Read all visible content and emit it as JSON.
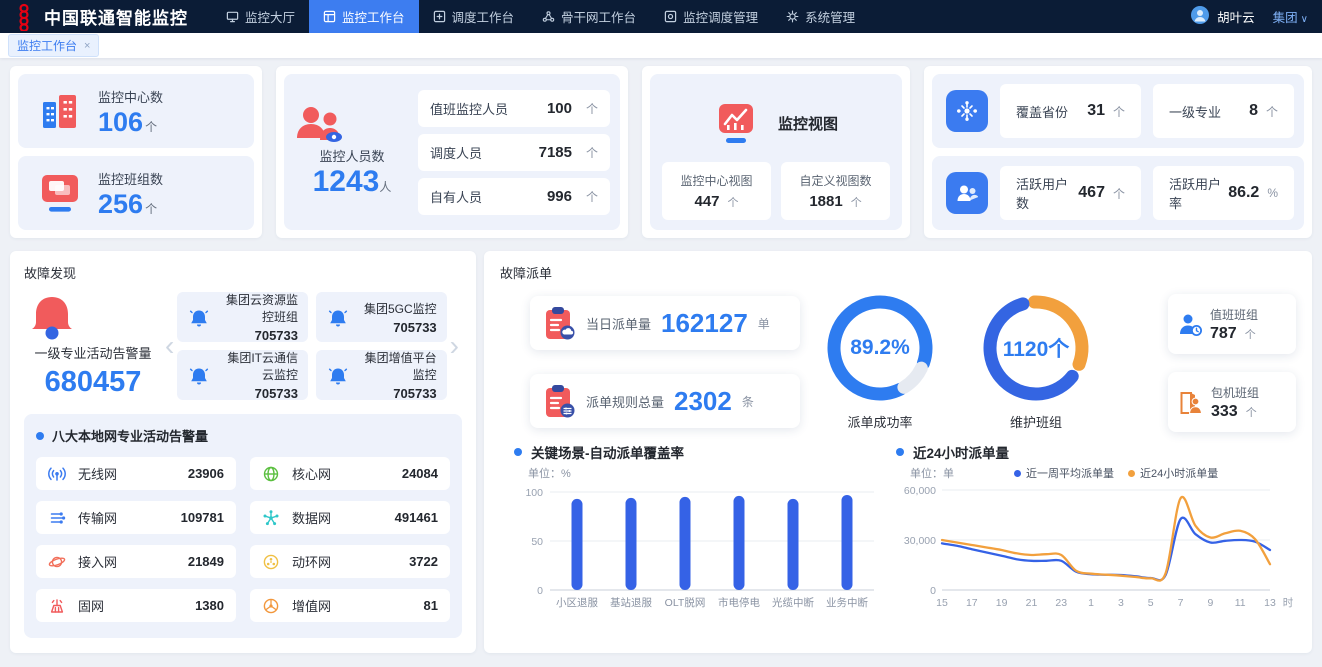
{
  "brand": {
    "title": "中国联通智能监控"
  },
  "navbar": {
    "items": [
      {
        "label": "监控大厅",
        "icon": "monitor-hall-icon",
        "active": false
      },
      {
        "label": "监控工作台",
        "icon": "monitor-workbench-icon",
        "active": true
      },
      {
        "label": "调度工作台",
        "icon": "dispatch-workbench-icon",
        "active": false
      },
      {
        "label": "骨干网工作台",
        "icon": "backbone-workbench-icon",
        "active": false
      },
      {
        "label": "监控调度管理",
        "icon": "schedule-mgmt-icon",
        "active": false
      },
      {
        "label": "系统管理",
        "icon": "gear-icon",
        "active": false
      }
    ],
    "user": {
      "name": "胡叶云"
    },
    "org": {
      "label": "集团",
      "caret": "∨"
    }
  },
  "tab_bar": {
    "tabs": [
      {
        "label": "监控工作台",
        "close": "×"
      }
    ]
  },
  "overview": {
    "centers": {
      "label": "监控中心数",
      "value": "106",
      "unit": "个"
    },
    "teams": {
      "label": "监控班组数",
      "value": "256",
      "unit": "个"
    },
    "staff": {
      "label": "监控人员数",
      "value": "1243",
      "unit": "人",
      "rows": [
        {
          "label": "值班监控人员",
          "value": "100",
          "unit": "个"
        },
        {
          "label": "调度人员",
          "value": "7185",
          "unit": "个"
        },
        {
          "label": "自有人员",
          "value": "996",
          "unit": "个"
        }
      ]
    },
    "views": {
      "title": "监控视图",
      "rows": [
        {
          "label": "监控中心视图",
          "value": "447",
          "unit": "个"
        },
        {
          "label": "自定义视图数",
          "value": "1881",
          "unit": "个"
        }
      ]
    },
    "coverage_rows": [
      {
        "icon": "folder-network-icon",
        "stats": [
          {
            "label": "覆盖省份",
            "value": "31",
            "unit": "个"
          },
          {
            "label": "一级专业",
            "value": "8",
            "unit": "个"
          }
        ]
      },
      {
        "icon": "folder-users-icon",
        "stats": [
          {
            "label": "活跃用户数",
            "value": "467",
            "unit": "个"
          },
          {
            "label": "活跃用户率",
            "value": "86.2",
            "unit": "%"
          }
        ]
      }
    ]
  },
  "fault_discovery": {
    "title": "故障发现",
    "summary": {
      "label": "一级专业活动告警量",
      "value": "680457"
    },
    "carousel": {
      "prev": "‹",
      "next": "›"
    },
    "group_cards": [
      {
        "name": "集团云资源监控班组",
        "value": "705733"
      },
      {
        "name": "集团5GC监控",
        "value": "705733"
      },
      {
        "name": "集团IT云通信云监控",
        "value": "705733"
      },
      {
        "name": "集团增值平台监控",
        "value": "705733"
      }
    ],
    "local_networks": {
      "title": "八大本地网专业活动告警量",
      "items": [
        {
          "name": "无线网",
          "value": "23906",
          "icon": "wireless-network-icon",
          "color": "#3b7bf0"
        },
        {
          "name": "核心网",
          "value": "24084",
          "icon": "core-network-icon",
          "color": "#5abf3f"
        },
        {
          "name": "传输网",
          "value": "109781",
          "icon": "transmission-network-icon",
          "color": "#3b7bf0"
        },
        {
          "name": "数据网",
          "value": "491461",
          "icon": "data-network-icon",
          "color": "#2ec7c9"
        },
        {
          "name": "接入网",
          "value": "21849",
          "icon": "access-network-icon",
          "color": "#f2705b"
        },
        {
          "name": "动环网",
          "value": "3722",
          "icon": "power-env-network-icon",
          "color": "#f0c043"
        },
        {
          "name": "固网",
          "value": "1380",
          "icon": "fixed-network-icon",
          "color": "#f15b5c"
        },
        {
          "name": "增值网",
          "value": "81",
          "icon": "value-added-network-icon",
          "color": "#f2973c"
        }
      ]
    }
  },
  "fault_dispatch": {
    "title": "故障派单",
    "stat_cards": [
      {
        "label": "当日派单量",
        "value": "162127",
        "unit": "单",
        "icon": "clipboard-cloud-icon"
      },
      {
        "label": "派单规则总量",
        "value": "2302",
        "unit": "条",
        "icon": "clipboard-rules-icon"
      }
    ],
    "gauges": [
      {
        "label": "派单成功率",
        "center_text": "89.2%",
        "segments": [
          {
            "color": "#2e7cf0",
            "fraction": 0.892,
            "start_deg": 154
          },
          {
            "color": "#e6eaf1",
            "fraction": 0.108,
            "start_deg": 116
          }
        ]
      },
      {
        "label": "维护班组",
        "center_text": "1120个",
        "segments": [
          {
            "color": "#f2a03d",
            "fraction": 0.33,
            "start_deg": -2
          },
          {
            "color": "#3465e2",
            "fraction": 0.615,
            "start_deg": 128
          }
        ]
      }
    ],
    "team_cards": [
      {
        "label": "值班班组",
        "value": "787",
        "unit": "个",
        "icon": "person-clock-icon"
      },
      {
        "label": "包机班组",
        "value": "333",
        "unit": "个",
        "icon": "person-door-icon"
      }
    ]
  },
  "chart_data": [
    {
      "type": "bar",
      "title": "关键场景-自动派单覆盖率",
      "unit_label": "单位：%",
      "categories": [
        "小区退服",
        "基站退服",
        "OLT脱网",
        "市电停电",
        "光缆中断",
        "业务中断"
      ],
      "values": [
        93,
        94,
        95,
        96,
        93,
        97
      ],
      "ylim": [
        0,
        100
      ],
      "yticks": [
        0,
        50,
        100
      ],
      "ytick_labels": [
        "0",
        "50",
        "100"
      ],
      "bar_color": "#3562e6",
      "grid": true,
      "legend": "none"
    },
    {
      "type": "line",
      "title": "近24小时派单量",
      "unit_label": "单位：单",
      "x_unit": "时",
      "x": [
        15,
        16,
        17,
        18,
        19,
        20,
        21,
        22,
        23,
        0,
        1,
        2,
        3,
        4,
        5,
        6,
        7,
        8,
        9,
        10,
        11,
        12,
        13
      ],
      "xtick_labels": [
        "15",
        "17",
        "19",
        "21",
        "23",
        "1",
        "3",
        "5",
        "7",
        "9",
        "11",
        "13"
      ],
      "series": [
        {
          "name": "近一周平均派单量",
          "color": "#3562e6",
          "values": [
            28000,
            26500,
            24500,
            22500,
            20500,
            18500,
            17500,
            17500,
            17500,
            11000,
            9500,
            9200,
            9000,
            8200,
            7200,
            9000,
            42500,
            33500,
            28500,
            29500,
            30000,
            29000,
            24000
          ]
        },
        {
          "name": "近24小时派单量",
          "color": "#f2a03d",
          "values": [
            30000,
            28500,
            27000,
            25500,
            24000,
            22000,
            21000,
            21500,
            21000,
            11500,
            9800,
            9200,
            8600,
            7800,
            7000,
            10000,
            55000,
            38500,
            31500,
            34000,
            35500,
            30500,
            15500
          ]
        }
      ],
      "ylim": [
        0,
        60000
      ],
      "yticks": [
        0,
        30000,
        60000
      ],
      "ytick_labels": [
        "0",
        "30,000",
        "60,000"
      ],
      "grid": true,
      "legend_position": "top"
    }
  ]
}
